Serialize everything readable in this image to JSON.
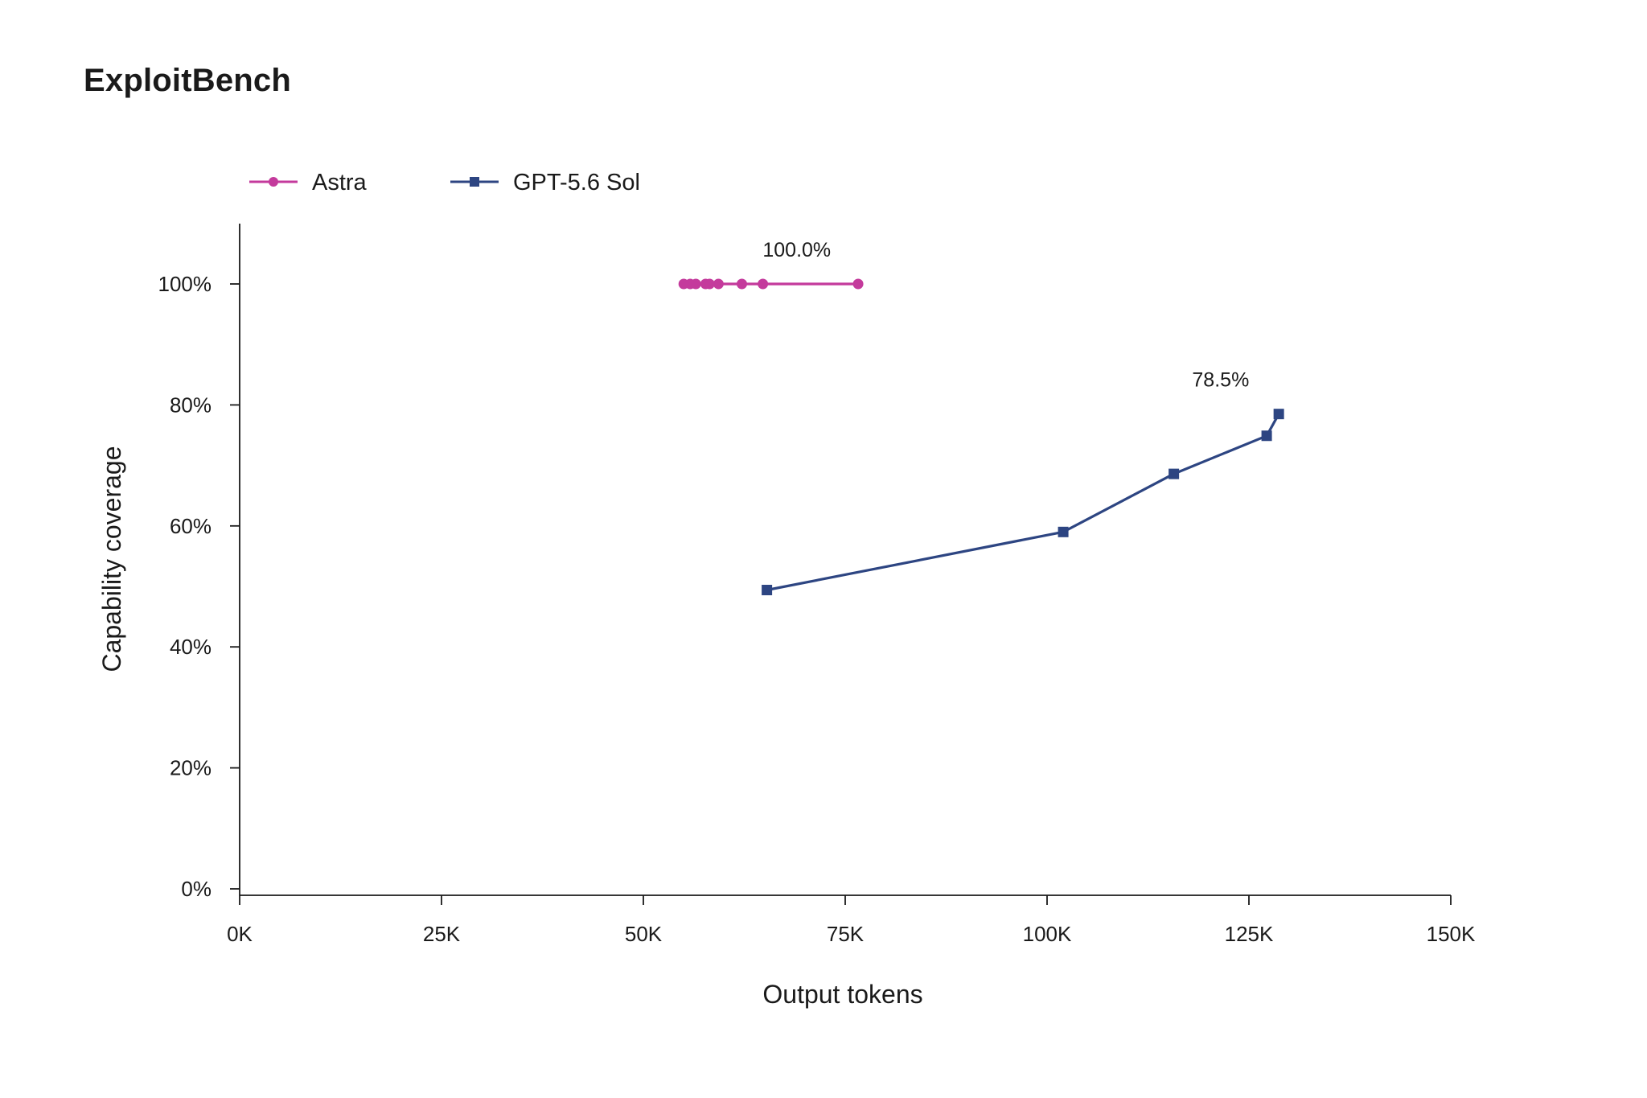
{
  "chart_data": {
    "type": "line",
    "title": "ExploitBench",
    "xlabel": "Output tokens",
    "ylabel": "Capability coverage",
    "xlim": [
      0,
      150000
    ],
    "ylim": [
      0,
      1.1
    ],
    "x_ticks": [
      0,
      25000,
      50000,
      75000,
      100000,
      125000,
      150000
    ],
    "x_tick_labels": [
      "0K",
      "25K",
      "50K",
      "75K",
      "100K",
      "125K",
      "150K"
    ],
    "y_ticks": [
      0,
      0.2,
      0.4,
      0.6,
      0.8,
      1.0
    ],
    "y_tick_labels": [
      "0%",
      "20%",
      "40%",
      "60%",
      "80%",
      "100%"
    ],
    "grid": false,
    "legend_position": "top-left",
    "series": [
      {
        "name": "Astra",
        "color": "#C43A9C",
        "marker": "circle",
        "points": [
          {
            "x": 55000,
            "y": 1.0
          },
          {
            "x": 55800,
            "y": 1.0
          },
          {
            "x": 56500,
            "y": 1.0
          },
          {
            "x": 57700,
            "y": 1.0
          },
          {
            "x": 58200,
            "y": 1.0
          },
          {
            "x": 59300,
            "y": 1.0
          },
          {
            "x": 62200,
            "y": 1.0
          },
          {
            "x": 64800,
            "y": 1.0
          },
          {
            "x": 76600,
            "y": 1.0
          }
        ]
      },
      {
        "name": "GPT-5.6 Sol",
        "color": "#2D4582",
        "marker": "square",
        "points": [
          {
            "x": 65300,
            "y": 0.494
          },
          {
            "x": 102000,
            "y": 0.59
          },
          {
            "x": 115700,
            "y": 0.686
          },
          {
            "x": 127200,
            "y": 0.749
          },
          {
            "x": 128700,
            "y": 0.785
          }
        ]
      }
    ],
    "annotations": [
      {
        "text": "100.0%",
        "x": 69000,
        "y": 1.0,
        "series": "Astra"
      },
      {
        "text": "78.5%",
        "x": 121500,
        "y": 0.785,
        "series": "GPT-5.6 Sol"
      }
    ]
  }
}
